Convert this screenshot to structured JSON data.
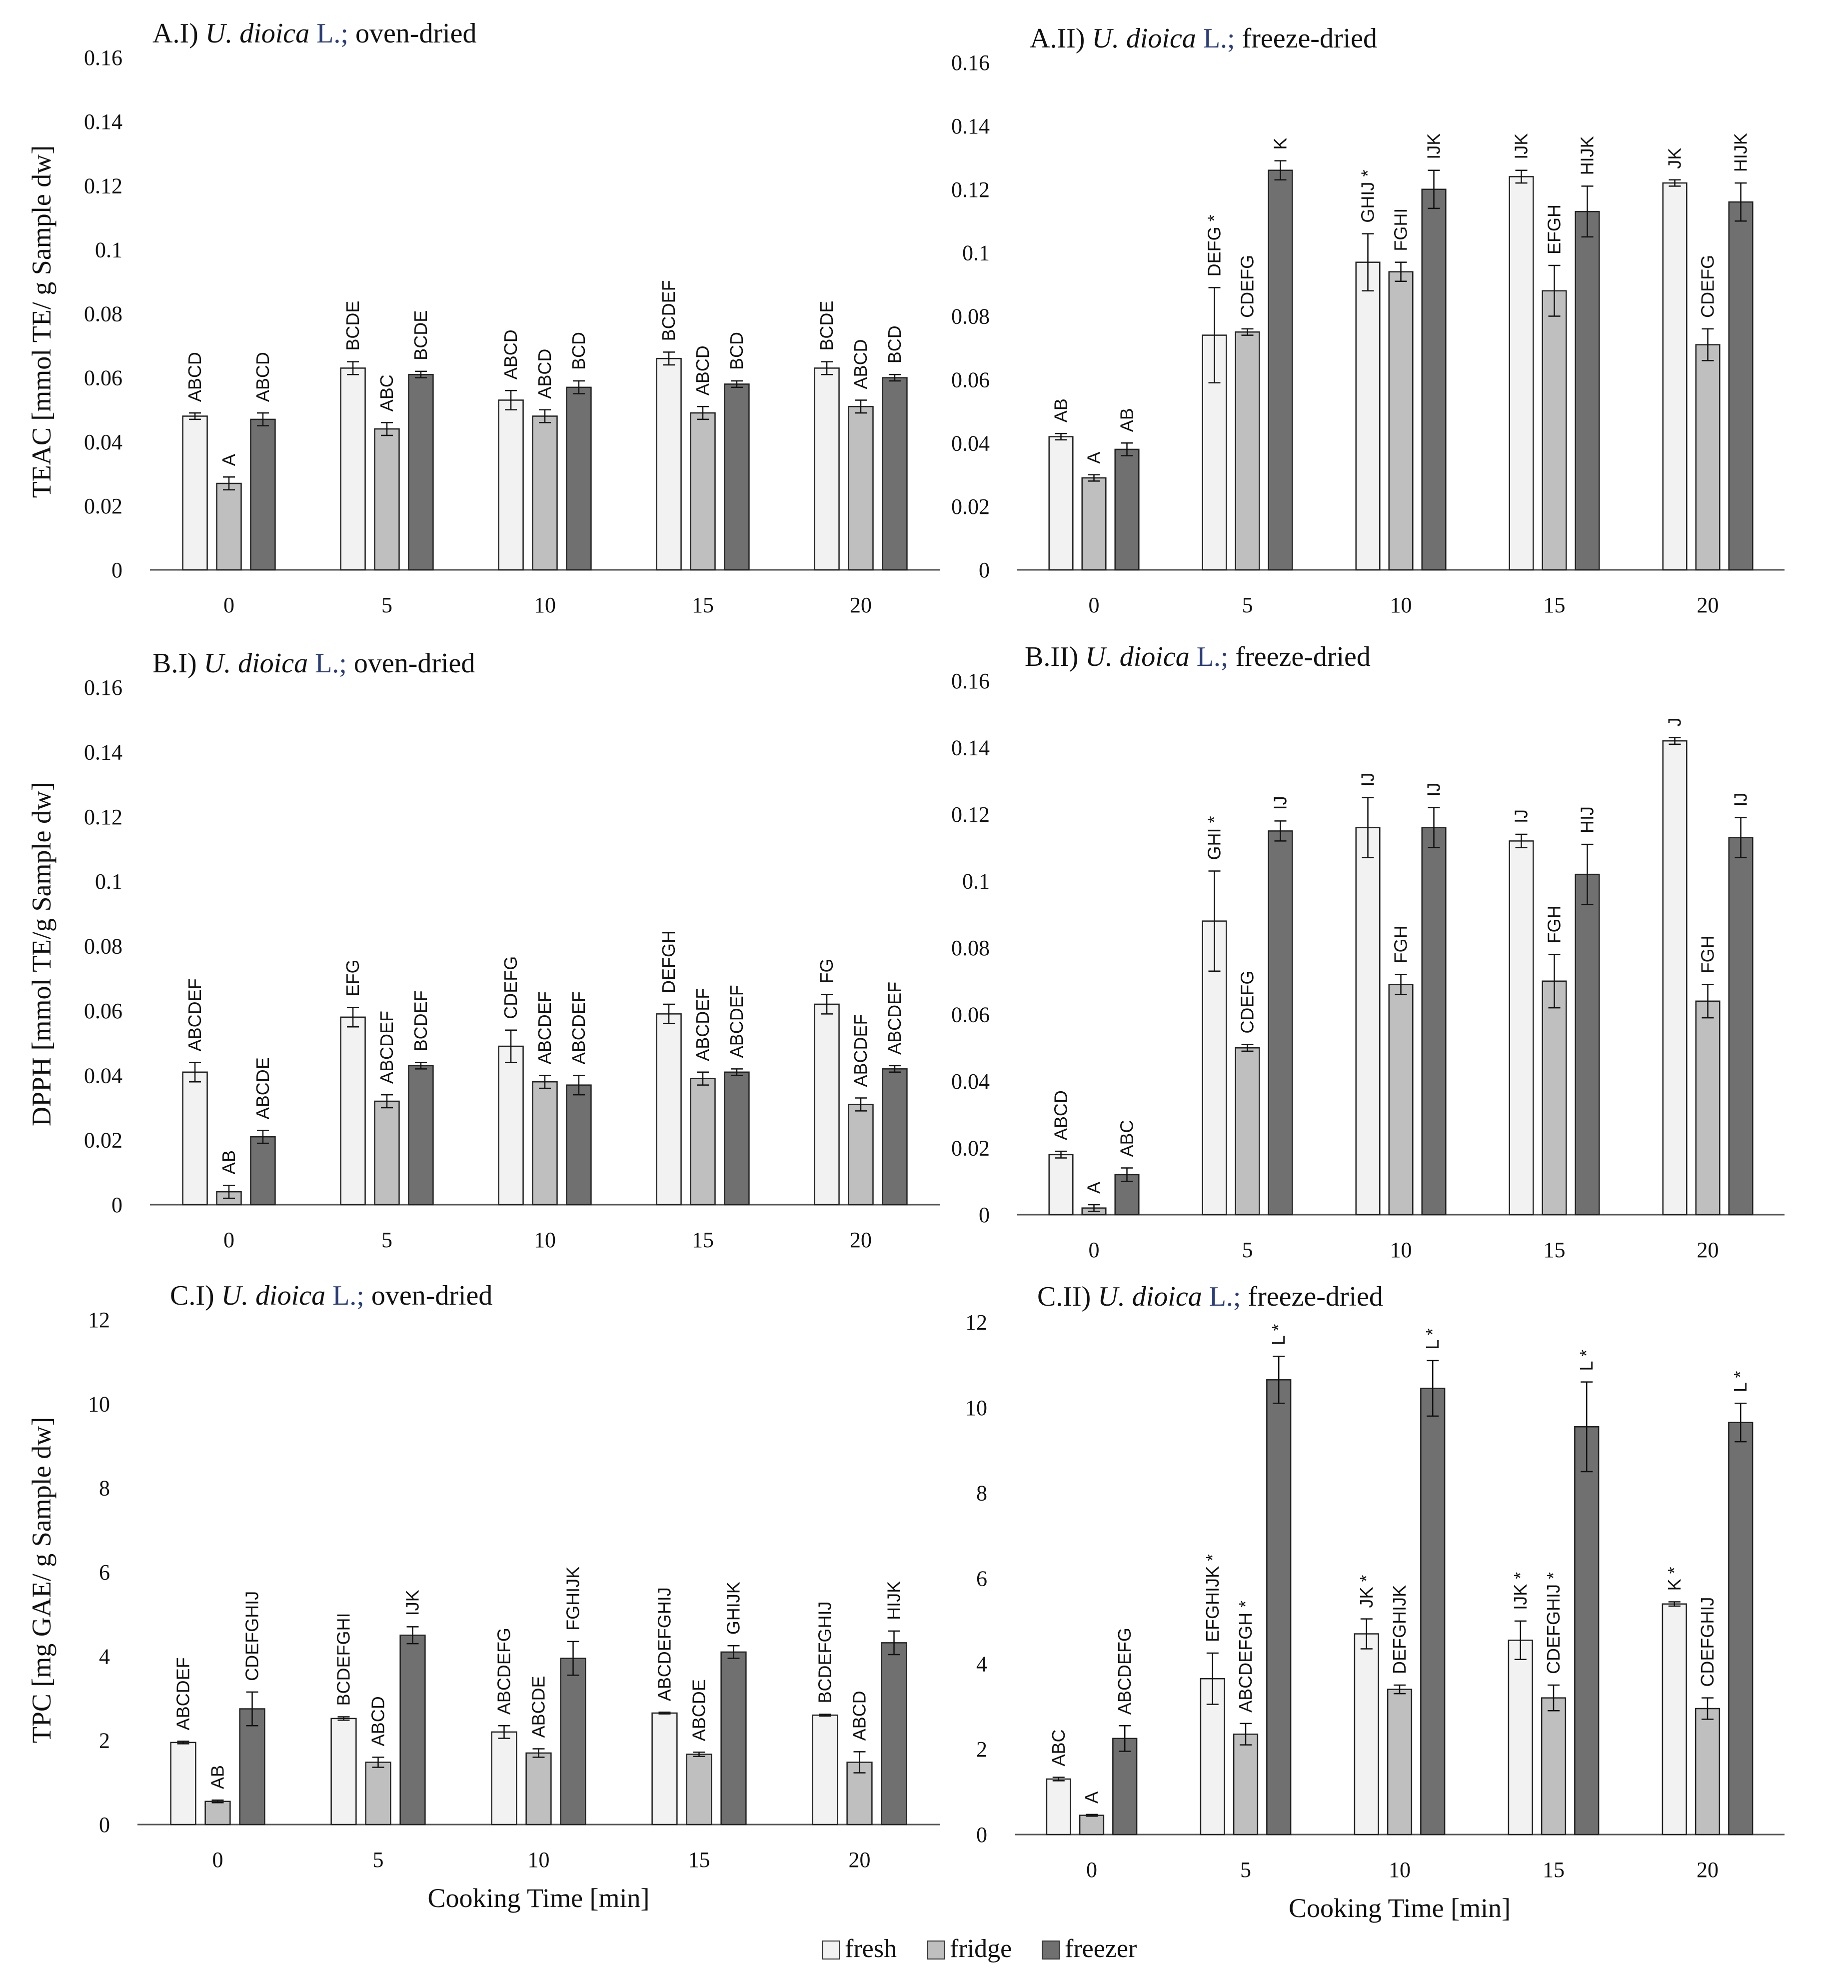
{
  "figure": {
    "legend": [
      {
        "label": "fresh",
        "color": "#f2f2f2"
      },
      {
        "label": "fridge",
        "color": "#bfbfbf"
      },
      {
        "label": "freezer",
        "color": "#707070"
      }
    ],
    "xlabel_bottom": "Cooking Time [min]"
  },
  "chart_data": [
    {
      "id": "A.I",
      "type": "bar",
      "title_prefix": "A.I)",
      "title_species": "U. dioica",
      "title_auth": "L.;",
      "title_method": "oven-dried",
      "ylabel": "TEAC [mmol TE/ g Sample dw]",
      "xlabel": "",
      "categories": [
        "0",
        "5",
        "10",
        "15",
        "20"
      ],
      "ylim": [
        0,
        0.16
      ],
      "yticks": [
        "0",
        "0.02",
        "0.04",
        "0.06",
        "0.08",
        "0.1",
        "0.12",
        "0.14",
        "0.16"
      ],
      "series": [
        {
          "name": "fresh",
          "values": [
            0.048,
            0.063,
            0.053,
            0.066,
            0.063
          ],
          "errors": [
            0.001,
            0.002,
            0.003,
            0.002,
            0.002
          ],
          "labels": [
            "ABCD",
            "BCDE",
            "ABCD",
            "BCDEF",
            "BCDE"
          ]
        },
        {
          "name": "fridge",
          "values": [
            0.027,
            0.044,
            0.048,
            0.049,
            0.051
          ],
          "errors": [
            0.002,
            0.002,
            0.002,
            0.002,
            0.002
          ],
          "labels": [
            "A",
            "ABC",
            "ABCD",
            "ABCD",
            "ABCD"
          ]
        },
        {
          "name": "freezer",
          "values": [
            0.047,
            0.061,
            0.057,
            0.058,
            0.06
          ],
          "errors": [
            0.002,
            0.001,
            0.002,
            0.001,
            0.001
          ],
          "labels": [
            "ABCD",
            "BCDE",
            "BCD",
            "BCD",
            "BCD"
          ]
        }
      ]
    },
    {
      "id": "A.II",
      "type": "bar",
      "title_prefix": "A.II)",
      "title_species": "U. dioica",
      "title_auth": "L.;",
      "title_method": "freeze-dried",
      "ylabel": "",
      "xlabel": "",
      "categories": [
        "0",
        "5",
        "10",
        "15",
        "20"
      ],
      "ylim": [
        0,
        0.16
      ],
      "yticks": [
        "0",
        "0.02",
        "0.04",
        "0.06",
        "0.08",
        "0.1",
        "0.12",
        "0.14",
        "0.16"
      ],
      "series": [
        {
          "name": "fresh",
          "values": [
            0.042,
            0.074,
            0.097,
            0.124,
            0.122
          ],
          "errors": [
            0.001,
            0.015,
            0.009,
            0.002,
            0.001
          ],
          "labels": [
            "AB",
            "DEFG *",
            "GHIJ *",
            "IJK",
            "JK"
          ]
        },
        {
          "name": "fridge",
          "values": [
            0.029,
            0.075,
            0.094,
            0.088,
            0.071
          ],
          "errors": [
            0.001,
            0.001,
            0.003,
            0.008,
            0.005
          ],
          "labels": [
            "A",
            "CDEFG",
            "FGHI",
            "EFGH",
            "CDEFG"
          ]
        },
        {
          "name": "freezer",
          "values": [
            0.038,
            0.126,
            0.12,
            0.113,
            0.116
          ],
          "errors": [
            0.002,
            0.003,
            0.006,
            0.008,
            0.006
          ],
          "labels": [
            "AB",
            "K",
            "IJK",
            "HIJK",
            "HIJK"
          ]
        }
      ]
    },
    {
      "id": "B.I",
      "type": "bar",
      "title_prefix": "B.I)",
      "title_species": "U. dioica",
      "title_auth": "L.;",
      "title_method": "oven-dried",
      "ylabel": "DPPH [mmol TE/g Sample dw]",
      "xlabel": "",
      "categories": [
        "0",
        "5",
        "10",
        "15",
        "20"
      ],
      "ylim": [
        0,
        0.16
      ],
      "yticks": [
        "0",
        "0.02",
        "0.04",
        "0.06",
        "0.08",
        "0.1",
        "0.12",
        "0.14",
        "0.16"
      ],
      "series": [
        {
          "name": "fresh",
          "values": [
            0.041,
            0.058,
            0.049,
            0.059,
            0.062
          ],
          "errors": [
            0.003,
            0.003,
            0.005,
            0.003,
            0.003
          ],
          "labels": [
            "ABCDEF",
            "EFG",
            "CDEFG",
            "DEFGH",
            "FG"
          ]
        },
        {
          "name": "fridge",
          "values": [
            0.004,
            0.032,
            0.038,
            0.039,
            0.031
          ],
          "errors": [
            0.002,
            0.002,
            0.002,
            0.002,
            0.002
          ],
          "labels": [
            "AB",
            "ABCDEF",
            "ABCDEF",
            "ABCDEF",
            "ABCDEF"
          ]
        },
        {
          "name": "freezer",
          "values": [
            0.021,
            0.043,
            0.037,
            0.041,
            0.042
          ],
          "errors": [
            0.002,
            0.001,
            0.003,
            0.001,
            0.001
          ],
          "labels": [
            "ABCDE",
            "BCDEF",
            "ABCDEF",
            "ABCDEF",
            "ABCDEF"
          ]
        }
      ]
    },
    {
      "id": "B.II",
      "type": "bar",
      "title_prefix": "B.II)",
      "title_species": "U. dioica",
      "title_auth": "L.;",
      "title_method": "freeze-dried",
      "ylabel": "",
      "xlabel": "",
      "categories": [
        "0",
        "5",
        "10",
        "15",
        "20"
      ],
      "ylim": [
        0,
        0.16
      ],
      "yticks": [
        "0",
        "0.02",
        "0.04",
        "0.06",
        "0.08",
        "0.1",
        "0.12",
        "0.14",
        "0.16"
      ],
      "series": [
        {
          "name": "fresh",
          "values": [
            0.018,
            0.088,
            0.116,
            0.112,
            0.142
          ],
          "errors": [
            0.001,
            0.015,
            0.009,
            0.002,
            0.001
          ],
          "labels": [
            "ABCD",
            "GHI *",
            "IJ",
            "IJ",
            "J"
          ]
        },
        {
          "name": "fridge",
          "values": [
            0.002,
            0.05,
            0.069,
            0.07,
            0.064
          ],
          "errors": [
            0.001,
            0.001,
            0.003,
            0.008,
            0.005
          ],
          "labels": [
            "A",
            "CDEFG",
            "FGH",
            "FGH",
            "FGH"
          ]
        },
        {
          "name": "freezer",
          "values": [
            0.012,
            0.115,
            0.116,
            0.102,
            0.113
          ],
          "errors": [
            0.002,
            0.003,
            0.006,
            0.009,
            0.006
          ],
          "labels": [
            "ABC",
            "IJ",
            "IJ",
            "HIJ",
            "IJ"
          ]
        }
      ]
    },
    {
      "id": "C.I",
      "type": "bar",
      "title_prefix": "C.I)",
      "title_species": "U. dioica",
      "title_auth": "L.;",
      "title_method": "oven-dried",
      "ylabel": "TPC [mg GAE/ g Sample dw]",
      "xlabel": "Cooking Time [min]",
      "categories": [
        "0",
        "5",
        "10",
        "15",
        "20"
      ],
      "ylim": [
        0,
        12
      ],
      "yticks": [
        "0",
        "2",
        "4",
        "6",
        "8",
        "10",
        "12"
      ],
      "series": [
        {
          "name": "fresh",
          "values": [
            1.95,
            2.52,
            2.2,
            2.65,
            2.6
          ],
          "errors": [
            0.03,
            0.04,
            0.15,
            0.02,
            0.02
          ],
          "labels": [
            "ABCDEF",
            "BCDEFGHI",
            "ABCDEFG",
            "ABCDEFGHIJ",
            "BCDEFGHIJ"
          ]
        },
        {
          "name": "fridge",
          "values": [
            0.55,
            1.48,
            1.7,
            1.67,
            1.48
          ],
          "errors": [
            0.03,
            0.12,
            0.1,
            0.05,
            0.25
          ],
          "labels": [
            "AB",
            "ABCD",
            "ABCDE",
            "ABCDE",
            "ABCD"
          ]
        },
        {
          "name": "freezer",
          "values": [
            2.75,
            4.5,
            3.95,
            4.1,
            4.32
          ],
          "errors": [
            0.4,
            0.2,
            0.4,
            0.15,
            0.28
          ],
          "labels": [
            "CDEFGHIJ",
            "IJK",
            "FGHIJK",
            "GHIJK",
            "HIJK"
          ]
        }
      ]
    },
    {
      "id": "C.II",
      "type": "bar",
      "title_prefix": "C.II)",
      "title_species": "U. dioica",
      "title_auth": "L.;",
      "title_method": "freeze-dried",
      "ylabel": "",
      "xlabel": "Cooking Time [min]",
      "categories": [
        "0",
        "5",
        "10",
        "15",
        "20"
      ],
      "ylim": [
        0,
        12
      ],
      "yticks": [
        "0",
        "2",
        "4",
        "6",
        "8",
        "10",
        "12"
      ],
      "series": [
        {
          "name": "fresh",
          "values": [
            1.3,
            3.65,
            4.7,
            4.55,
            5.4
          ],
          "errors": [
            0.04,
            0.6,
            0.35,
            0.45,
            0.05
          ],
          "labels": [
            "ABC",
            "EFGHIJK *",
            "JK *",
            "IJK *",
            "K *"
          ]
        },
        {
          "name": "fridge",
          "values": [
            0.45,
            2.35,
            3.4,
            3.2,
            2.95
          ],
          "errors": [
            0.02,
            0.25,
            0.1,
            0.3,
            0.25
          ],
          "labels": [
            "A",
            "ABCDEFGH *",
            "DEFGHIJK",
            "CDEFGHIJ *",
            "CDEFGHIJ"
          ]
        },
        {
          "name": "freezer",
          "values": [
            2.25,
            10.65,
            10.45,
            9.55,
            9.65
          ],
          "errors": [
            0.3,
            0.55,
            0.65,
            1.05,
            0.45
          ],
          "labels": [
            "ABCDEFG",
            "L *",
            "L *",
            "L *",
            "L *"
          ]
        }
      ]
    }
  ]
}
